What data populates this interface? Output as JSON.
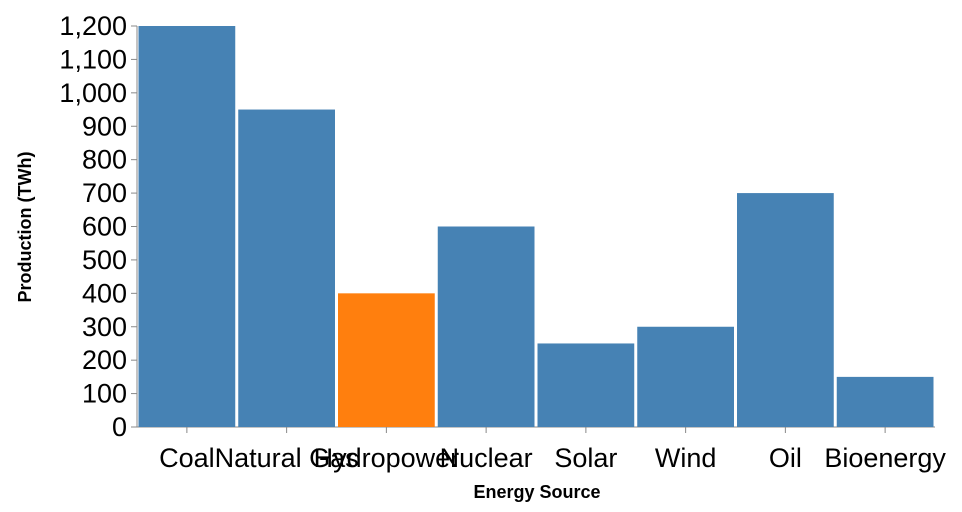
{
  "chart_data": {
    "type": "bar",
    "title": "",
    "xlabel": "Energy Source",
    "ylabel": "Production (TWh)",
    "categories": [
      "Coal",
      "Natural Gas",
      "Hydropower",
      "Nuclear",
      "Solar",
      "Wind",
      "Oil",
      "Bioenergy"
    ],
    "values": [
      1200,
      950,
      400,
      600,
      250,
      300,
      700,
      150
    ],
    "ylim": [
      0,
      1200
    ],
    "yticks": [
      0,
      100,
      200,
      300,
      400,
      500,
      600,
      700,
      800,
      900,
      1000,
      1100,
      1200
    ],
    "ytick_labels": [
      "0",
      "100",
      "200",
      "300",
      "400",
      "500",
      "600",
      "700",
      "800",
      "900",
      "1,000",
      "1,100",
      "1,200"
    ],
    "highlight_category": "Hydropower",
    "colors": {
      "bar": "#4682b4",
      "highlight": "#ff7f0e",
      "axis": "#888888"
    },
    "grid": false,
    "legend": "none"
  }
}
